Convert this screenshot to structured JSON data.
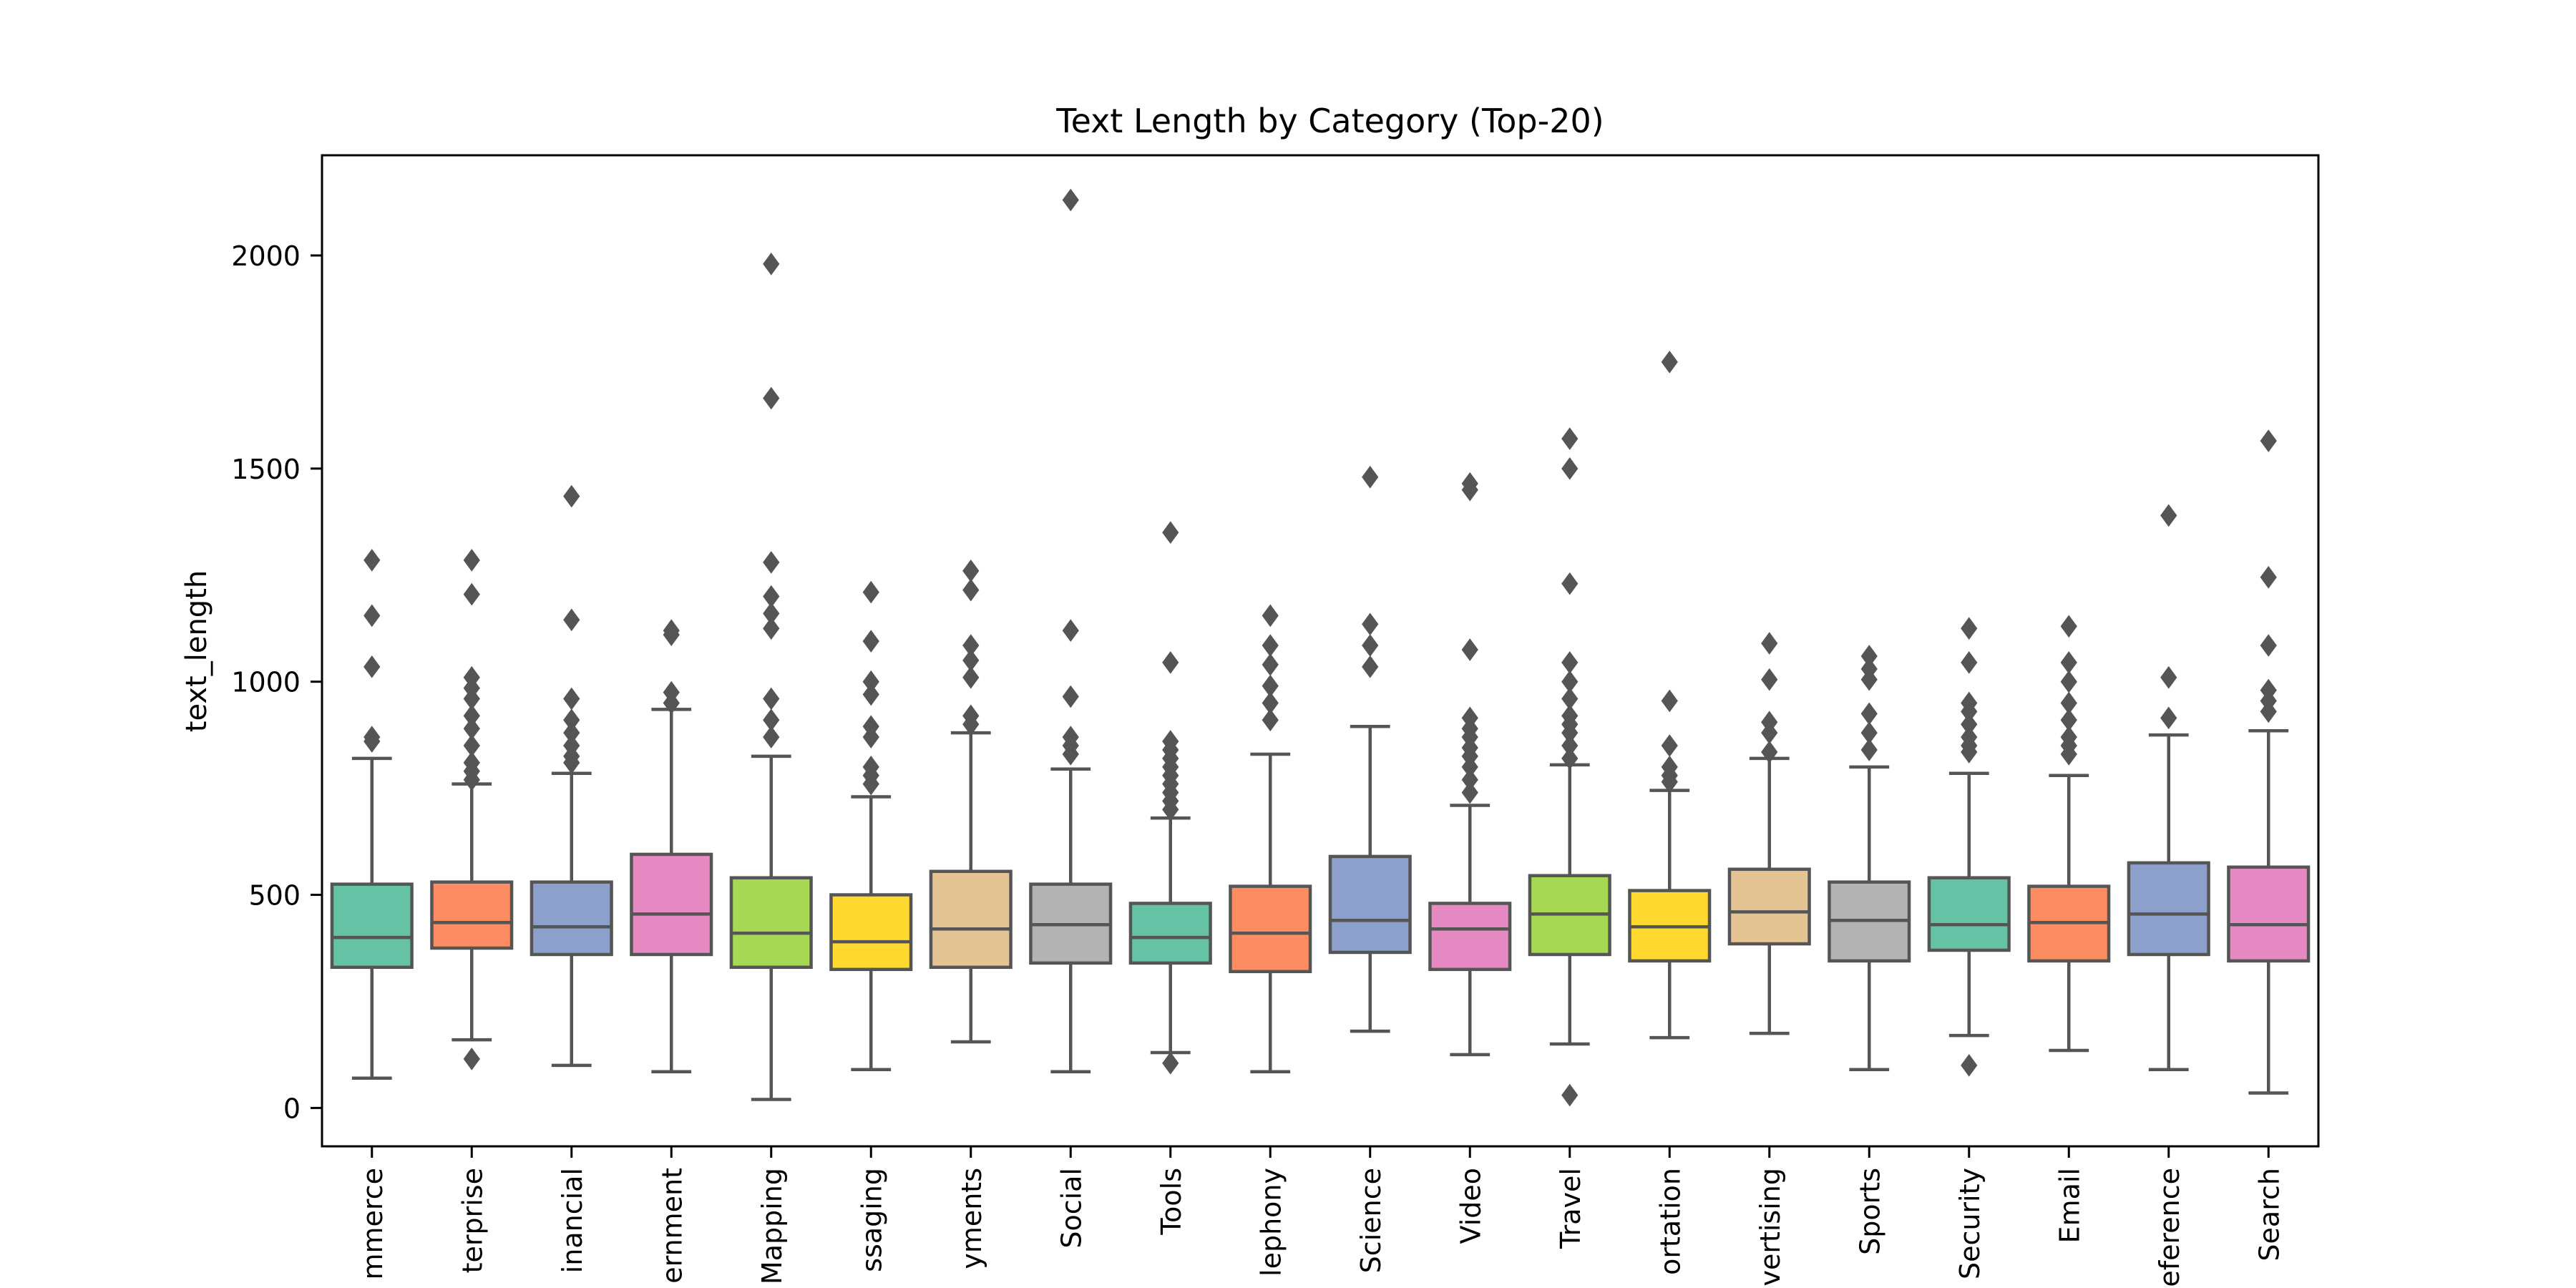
{
  "chart_data": {
    "type": "box",
    "title": "Text Length by Category (Top-20)",
    "xlabel": "",
    "ylabel": "text_length",
    "ylim": [
      -90,
      2235
    ],
    "yticks": [
      0,
      500,
      1000,
      1500,
      2000
    ],
    "grid": false,
    "legend": "none",
    "categories": [
      "mmerce",
      "terprise",
      "inancial",
      "ernment",
      "Mapping",
      "ssaging",
      "yments",
      "Social",
      "Tools",
      "lephony",
      "Science",
      "Video",
      "Travel",
      "ortation",
      "vertising",
      "Sports",
      "Security",
      "Email",
      "eference",
      "Search"
    ],
    "colors": [
      "#66c2a5",
      "#fc8d62",
      "#8da0cb",
      "#e78ac3",
      "#a6d854",
      "#ffd92f",
      "#e5c494",
      "#b3b3b3",
      "#66c2a5",
      "#fc8d62",
      "#8da0cb",
      "#e78ac3",
      "#a6d854",
      "#ffd92f",
      "#e5c494",
      "#b3b3b3",
      "#66c2a5",
      "#fc8d62",
      "#8da0cb",
      "#e78ac3"
    ],
    "boxes": [
      {
        "whisker_low": 70,
        "q1": 330,
        "median": 400,
        "q3": 525,
        "whisker_high": 820,
        "outliers": [
          860,
          870,
          1035,
          1155,
          1285
        ]
      },
      {
        "whisker_low": 160,
        "q1": 375,
        "median": 435,
        "q3": 530,
        "whisker_high": 760,
        "outliers": [
          115,
          770,
          790,
          810,
          850,
          890,
          920,
          960,
          985,
          1010,
          1205,
          1285
        ]
      },
      {
        "whisker_low": 100,
        "q1": 360,
        "median": 425,
        "q3": 530,
        "whisker_high": 785,
        "outliers": [
          810,
          825,
          850,
          880,
          910,
          960,
          1145,
          1435
        ]
      },
      {
        "whisker_low": 85,
        "q1": 360,
        "median": 455,
        "q3": 595,
        "whisker_high": 935,
        "outliers": [
          950,
          975,
          1110,
          1120
        ]
      },
      {
        "whisker_low": 20,
        "q1": 330,
        "median": 410,
        "q3": 540,
        "whisker_high": 825,
        "outliers": [
          870,
          910,
          960,
          1125,
          1160,
          1200,
          1280,
          1665,
          1980
        ]
      },
      {
        "whisker_low": 90,
        "q1": 325,
        "median": 390,
        "q3": 500,
        "whisker_high": 730,
        "outliers": [
          760,
          780,
          800,
          870,
          895,
          970,
          1000,
          1095,
          1210
        ]
      },
      {
        "whisker_low": 155,
        "q1": 330,
        "median": 420,
        "q3": 555,
        "whisker_high": 880,
        "outliers": [
          900,
          920,
          1010,
          1050,
          1085,
          1215,
          1260
        ]
      },
      {
        "whisker_low": 85,
        "q1": 340,
        "median": 430,
        "q3": 525,
        "whisker_high": 795,
        "outliers": [
          830,
          850,
          870,
          965,
          1120,
          2130
        ]
      },
      {
        "whisker_low": 130,
        "q1": 340,
        "median": 400,
        "q3": 480,
        "whisker_high": 680,
        "outliers": [
          105,
          700,
          720,
          740,
          760,
          780,
          800,
          820,
          840,
          860,
          1045,
          1350
        ]
      },
      {
        "whisker_low": 85,
        "q1": 320,
        "median": 410,
        "q3": 520,
        "whisker_high": 830,
        "outliers": [
          910,
          950,
          990,
          1040,
          1085,
          1155
        ]
      },
      {
        "whisker_low": 180,
        "q1": 365,
        "median": 440,
        "q3": 590,
        "whisker_high": 895,
        "outliers": [
          1035,
          1085,
          1135,
          1480
        ]
      },
      {
        "whisker_low": 125,
        "q1": 325,
        "median": 420,
        "q3": 480,
        "whisker_high": 710,
        "outliers": [
          740,
          770,
          800,
          825,
          845,
          870,
          890,
          915,
          1075,
          1450,
          1465
        ]
      },
      {
        "whisker_low": 150,
        "q1": 360,
        "median": 455,
        "q3": 545,
        "whisker_high": 805,
        "outliers": [
          30,
          820,
          850,
          880,
          900,
          920,
          960,
          1000,
          1045,
          1230,
          1500,
          1570
        ]
      },
      {
        "whisker_low": 165,
        "q1": 345,
        "median": 425,
        "q3": 510,
        "whisker_high": 745,
        "outliers": [
          765,
          780,
          800,
          850,
          955,
          1750
        ]
      },
      {
        "whisker_low": 175,
        "q1": 385,
        "median": 460,
        "q3": 560,
        "whisker_high": 820,
        "outliers": [
          835,
          880,
          905,
          1005,
          1090
        ]
      },
      {
        "whisker_low": 90,
        "q1": 345,
        "median": 440,
        "q3": 530,
        "whisker_high": 800,
        "outliers": [
          840,
          880,
          925,
          1005,
          1030,
          1060
        ]
      },
      {
        "whisker_low": 170,
        "q1": 370,
        "median": 430,
        "q3": 540,
        "whisker_high": 785,
        "outliers": [
          100,
          835,
          850,
          870,
          900,
          930,
          950,
          1045,
          1125
        ]
      },
      {
        "whisker_low": 135,
        "q1": 345,
        "median": 435,
        "q3": 520,
        "whisker_high": 780,
        "outliers": [
          830,
          850,
          870,
          910,
          950,
          1000,
          1045,
          1130
        ]
      },
      {
        "whisker_low": 90,
        "q1": 360,
        "median": 455,
        "q3": 575,
        "whisker_high": 875,
        "outliers": [
          915,
          1010,
          1390
        ]
      },
      {
        "whisker_low": 35,
        "q1": 345,
        "median": 430,
        "q3": 565,
        "whisker_high": 885,
        "outliers": [
          930,
          955,
          980,
          1085,
          1245,
          1565
        ]
      }
    ]
  }
}
